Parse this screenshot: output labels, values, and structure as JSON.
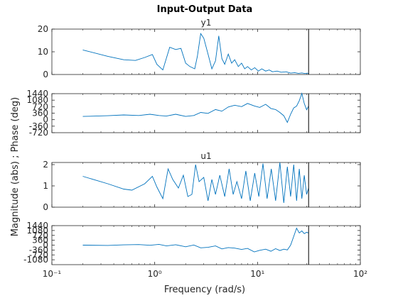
{
  "figure": {
    "title": "Input-Output Data",
    "ylabel": "Magnitude (abs) ; Phase (deg)",
    "xlabel": "Frequency  (rad/s)",
    "line_color": "#0072BD",
    "marker_color": "#000000",
    "nyquist_marker": 31.4
  },
  "chart_data": [
    {
      "type": "line",
      "panel": "y1-magnitude",
      "title": "y1",
      "xscale": "log",
      "xlim": [
        0.1,
        100
      ],
      "ylim": [
        0,
        20
      ],
      "yticks": [
        "0",
        "10",
        "20"
      ],
      "xticks": [],
      "grid": false,
      "x": [
        0.2,
        0.35,
        0.5,
        0.65,
        0.8,
        0.95,
        1.05,
        1.2,
        1.4,
        1.6,
        1.8,
        2.0,
        2.2,
        2.45,
        2.6,
        2.8,
        3.0,
        3.3,
        3.6,
        3.9,
        4.2,
        4.5,
        4.8,
        5.2,
        5.6,
        6.0,
        6.5,
        7.0,
        7.5,
        8.0,
        8.7,
        9.4,
        10.2,
        11,
        12,
        13,
        14,
        15.5,
        17,
        19,
        21,
        23,
        25,
        27,
        29,
        30.5,
        31.4
      ],
      "y": [
        10.8,
        8,
        6.5,
        6.2,
        7.5,
        8.8,
        4.5,
        2,
        12,
        11,
        11.5,
        5,
        3.5,
        2.5,
        8,
        18,
        16,
        9,
        2.5,
        6,
        17,
        7,
        4.5,
        9,
        5,
        6.5,
        3.5,
        5,
        2.5,
        3.5,
        2,
        3,
        1.5,
        2.5,
        1.5,
        2,
        1.2,
        1.5,
        1,
        1.2,
        0.6,
        0.8,
        0.5,
        0.7,
        0.4,
        0.6,
        0.3
      ]
    },
    {
      "type": "line",
      "panel": "y1-phase",
      "title": "",
      "xscale": "log",
      "xlim": [
        0.1,
        100
      ],
      "ylim": [
        -720,
        1440
      ],
      "yticks": [
        "-720",
        "-360",
        "0",
        "360",
        "720",
        "1080",
        "1440"
      ],
      "xticks": [],
      "grid": false,
      "x": [
        0.2,
        0.35,
        0.5,
        0.7,
        0.9,
        1.1,
        1.3,
        1.6,
        2.0,
        2.4,
        2.8,
        3.3,
        3.9,
        4.5,
        5.2,
        6.0,
        7.0,
        8.0,
        9.3,
        10.5,
        12,
        13.5,
        15,
        16.5,
        18,
        19.5,
        21,
        22.5,
        24,
        25.5,
        27,
        28.5,
        30,
        31.4
      ],
      "y": [
        180,
        220,
        260,
        230,
        300,
        230,
        200,
        300,
        180,
        230,
        400,
        350,
        560,
        470,
        700,
        800,
        720,
        900,
        760,
        680,
        850,
        620,
        560,
        400,
        220,
        -150,
        300,
        650,
        750,
        1050,
        1450,
        900,
        550,
        750
      ]
    },
    {
      "type": "line",
      "panel": "u1-magnitude",
      "title": "u1",
      "xscale": "log",
      "xlim": [
        0.1,
        100
      ],
      "ylim": [
        0,
        2.1
      ],
      "yticks": [
        "0",
        "1",
        "2"
      ],
      "xticks": [],
      "grid": false,
      "x": [
        0.2,
        0.35,
        0.5,
        0.6,
        0.8,
        0.95,
        1.05,
        1.2,
        1.35,
        1.5,
        1.7,
        1.9,
        2.1,
        2.3,
        2.5,
        2.7,
        3.0,
        3.3,
        3.6,
        3.9,
        4.3,
        4.8,
        5.3,
        5.8,
        6.3,
        7.0,
        7.7,
        8.5,
        9.4,
        10.3,
        11.3,
        12.4,
        13.6,
        15,
        16.5,
        18,
        19.5,
        21,
        22.5,
        24,
        25.5,
        27,
        28.5,
        30,
        31.4
      ],
      "y": [
        1.45,
        1.1,
        0.85,
        0.8,
        1.1,
        1.45,
        0.95,
        0.4,
        1.8,
        1.3,
        0.9,
        1.5,
        0.5,
        0.6,
        2.0,
        1.2,
        1.4,
        0.3,
        1.3,
        0.6,
        1.5,
        0.5,
        1.8,
        0.6,
        1.2,
        0.4,
        1.7,
        0.3,
        1.6,
        0.5,
        2.05,
        0.4,
        1.8,
        0.3,
        2.1,
        0.2,
        1.9,
        0.5,
        2.0,
        0.3,
        1.8,
        0.4,
        1.5,
        0.6,
        0.9
      ]
    },
    {
      "type": "line",
      "panel": "u1-phase",
      "title": "",
      "xscale": "log",
      "xlim": [
        0.1,
        100
      ],
      "ylim": [
        -1440,
        1440
      ],
      "yticks": [
        "-1080",
        "-720",
        "-360",
        "0",
        "360",
        "720",
        "1080",
        "1440"
      ],
      "xticks": [
        "10⁻¹",
        "10⁰",
        "10¹",
        "10²"
      ],
      "xtick_values": [
        0.1,
        1,
        10,
        100
      ],
      "grid": false,
      "x": [
        0.2,
        0.35,
        0.5,
        0.7,
        0.9,
        1.1,
        1.3,
        1.6,
        2.0,
        2.4,
        2.8,
        3.3,
        3.9,
        4.5,
        5.2,
        6.0,
        7.0,
        8.0,
        9.3,
        10.5,
        12,
        13.5,
        15,
        16.5,
        18,
        19.5,
        21,
        22.5,
        24,
        25.5,
        27,
        28.5,
        30,
        31.4
      ],
      "y": [
        0,
        -20,
        20,
        40,
        -10,
        60,
        -60,
        30,
        -120,
        10,
        -200,
        -160,
        -60,
        -280,
        -180,
        -220,
        -320,
        -240,
        -500,
        -380,
        -300,
        -450,
        -260,
        -400,
        -300,
        -350,
        0,
        650,
        1250,
        900,
        1050,
        850,
        950,
        900
      ]
    }
  ]
}
